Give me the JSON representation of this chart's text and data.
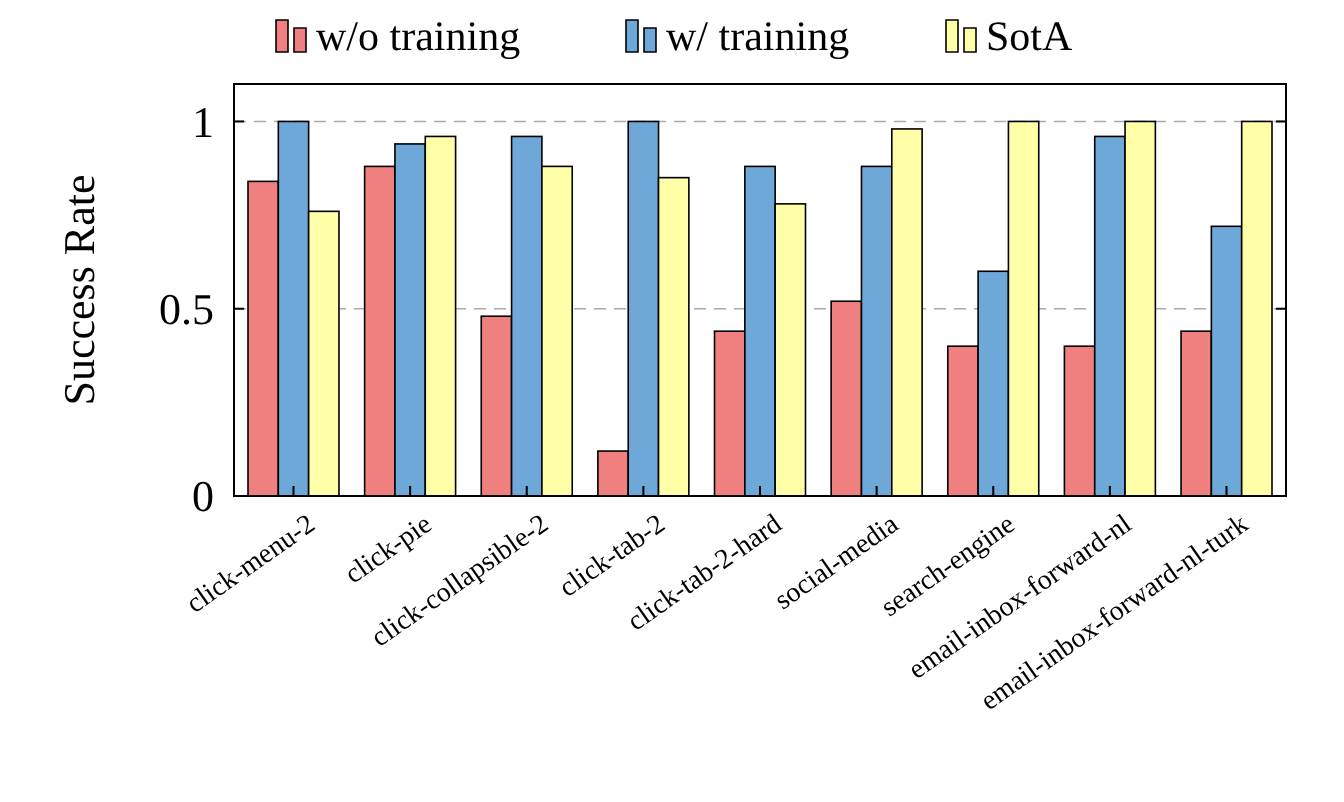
{
  "chart_data": {
    "type": "bar",
    "ylabel": "Success Rate",
    "categories": [
      "click-menu-2",
      "click-pie",
      "click-collapsible-2",
      "click-tab-2",
      "click-tab-2-hard",
      "social-media",
      "search-engine",
      "email-inbox-forward-nl",
      "email-inbox-forward-nl-turk"
    ],
    "series": [
      {
        "name": "w/o training",
        "color": "#f08080",
        "values": [
          0.84,
          0.88,
          0.48,
          0.12,
          0.44,
          0.52,
          0.4,
          0.4,
          0.44
        ]
      },
      {
        "name": "w/ training",
        "color": "#6ea8d8",
        "values": [
          1.0,
          0.94,
          0.96,
          1.0,
          0.88,
          0.88,
          0.6,
          0.96,
          0.72
        ]
      },
      {
        "name": "SotA",
        "color": "#ffffa8",
        "values": [
          0.76,
          0.96,
          0.88,
          0.85,
          0.78,
          0.98,
          1.0,
          1.0,
          1.0
        ]
      }
    ],
    "ylim": [
      0,
      1.1
    ],
    "yticks": [
      0,
      0.5,
      1
    ],
    "grid": "y",
    "legend": "top"
  }
}
